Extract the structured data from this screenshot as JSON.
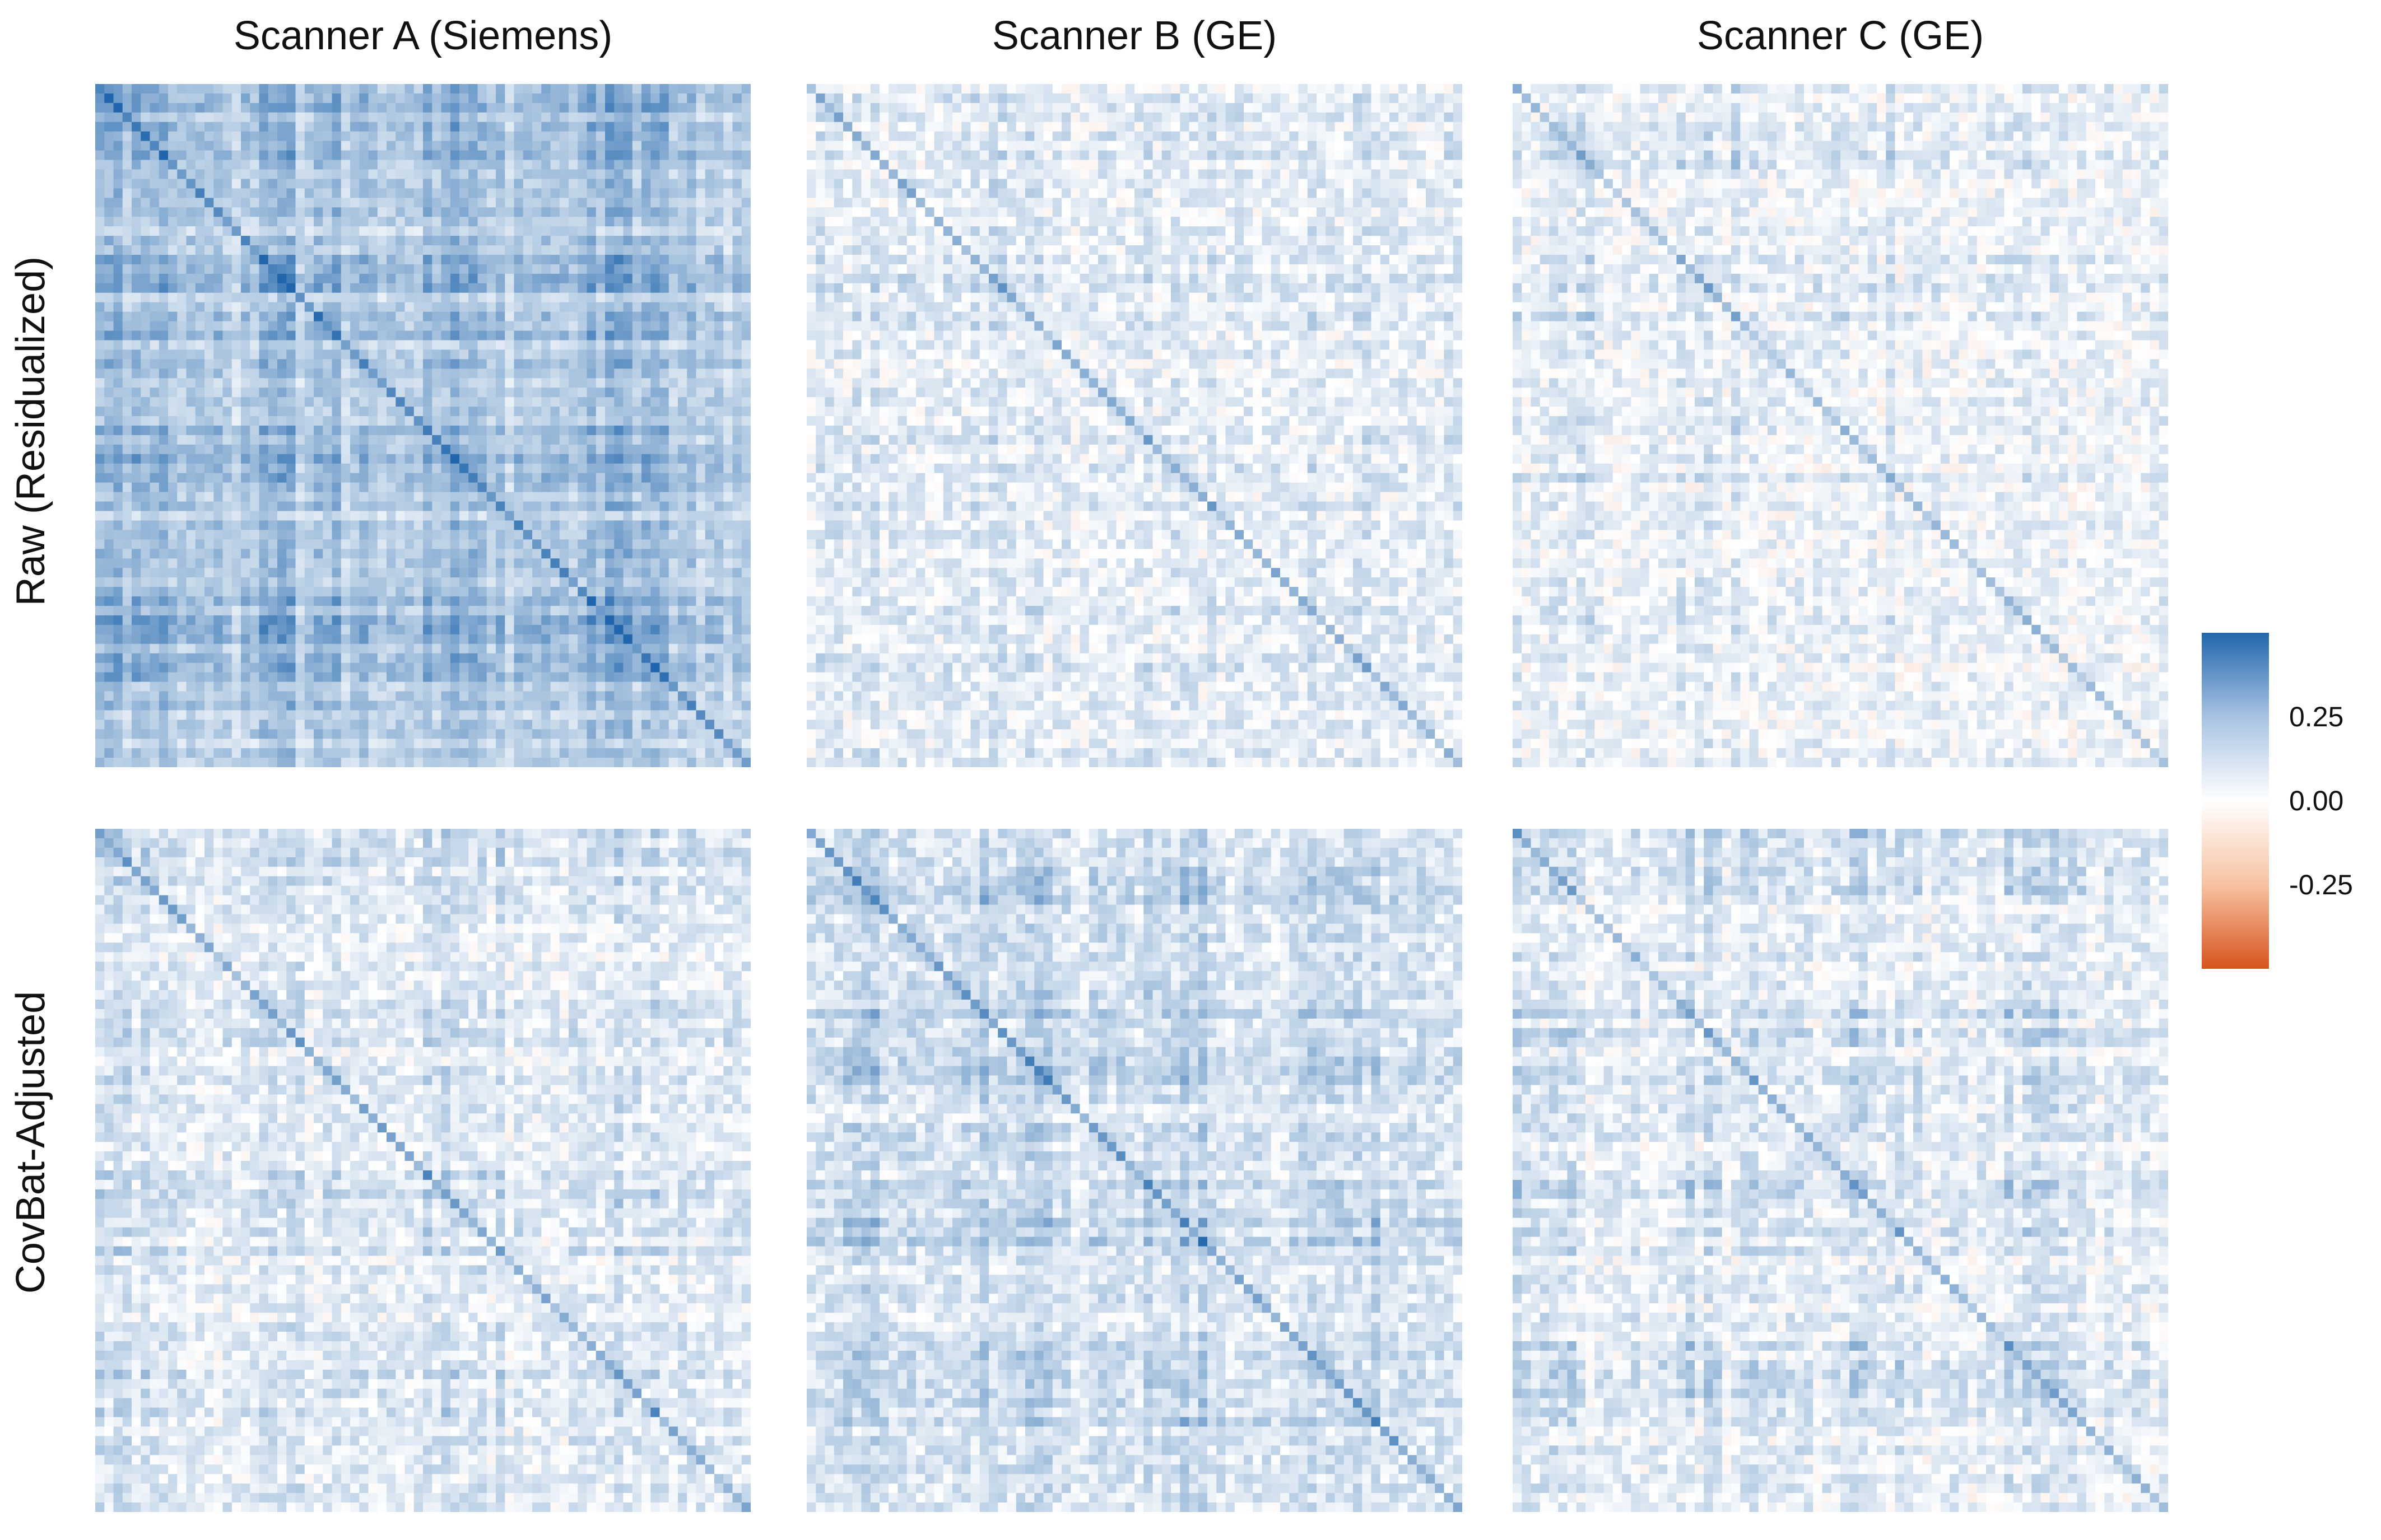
{
  "chart_data": [
    {
      "type": "heatmap",
      "panel": "raw-scanner-a",
      "column": "Scanner A (Siemens)",
      "row": "Raw (Residualized)",
      "n": 72,
      "seed": 11,
      "mean": 0.17,
      "struct": 0.22,
      "noise": 0.06,
      "diag": 0.18
    },
    {
      "type": "heatmap",
      "panel": "raw-scanner-b",
      "column": "Scanner B (GE)",
      "row": "Raw (Residualized)",
      "n": 72,
      "seed": 23,
      "mean": 0.05,
      "struct": 0.1,
      "noise": 0.07,
      "diag": 0.2
    },
    {
      "type": "heatmap",
      "panel": "raw-scanner-c",
      "column": "Scanner C (GE)",
      "row": "Raw (Residualized)",
      "n": 72,
      "seed": 37,
      "mean": 0.02,
      "struct": 0.14,
      "noise": 0.07,
      "diag": 0.18
    },
    {
      "type": "heatmap",
      "panel": "adj-scanner-a",
      "column": "Scanner A (Siemens)",
      "row": "CovBat-Adjusted",
      "n": 72,
      "seed": 41,
      "mean": 0.05,
      "struct": 0.12,
      "noise": 0.07,
      "diag": 0.22
    },
    {
      "type": "heatmap",
      "panel": "adj-scanner-b",
      "column": "Scanner B (GE)",
      "row": "CovBat-Adjusted",
      "n": 72,
      "seed": 53,
      "mean": 0.09,
      "struct": 0.15,
      "noise": 0.07,
      "diag": 0.22
    },
    {
      "type": "heatmap",
      "panel": "adj-scanner-c",
      "column": "Scanner C (GE)",
      "row": "CovBat-Adjusted",
      "n": 72,
      "seed": 67,
      "mean": 0.04,
      "struct": 0.15,
      "noise": 0.07,
      "diag": 0.18
    }
  ],
  "columns": [
    "Scanner A (Siemens)",
    "Scanner B (GE)",
    "Scanner C (GE)"
  ],
  "rows": [
    "Raw (Residualized)",
    "CovBat-Adjusted"
  ],
  "legend": {
    "ticks": [
      "0.25",
      "0.00",
      "-0.25"
    ],
    "tick_values": [
      0.25,
      0.0,
      -0.25
    ],
    "range": [
      -0.45,
      0.45
    ],
    "colors": {
      "high": "#2166ac",
      "mid": "#ffffff",
      "low": "#d6541d"
    }
  }
}
